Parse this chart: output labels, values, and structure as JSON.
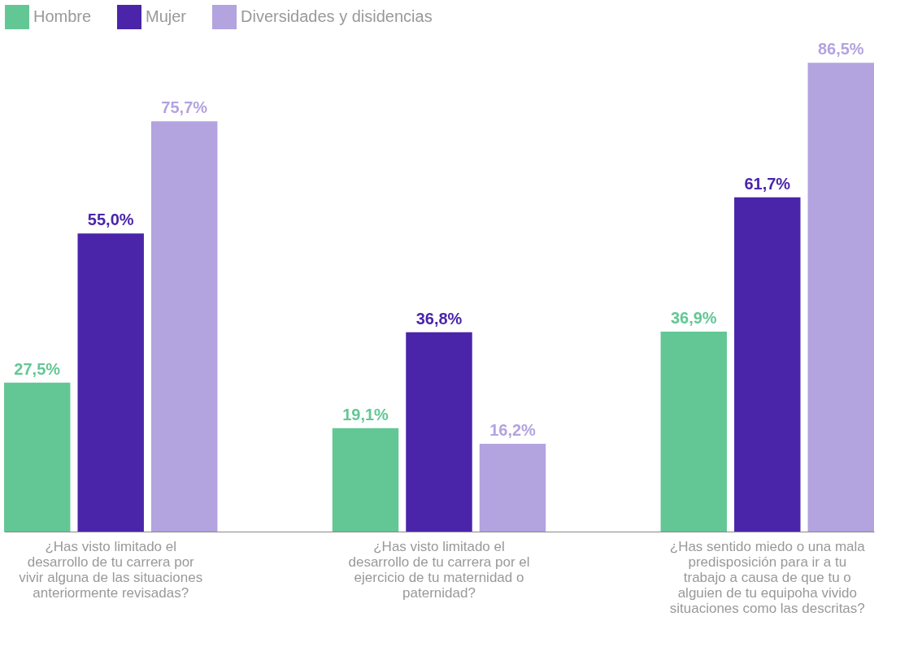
{
  "chart_data": {
    "type": "bar",
    "categories": [
      "¿Has visto limitado el desarrollo de tu carrera por vivir alguna de las situaciones anteriormente revisadas?",
      "¿Has visto limitado el desarrollo de tu carrera por el ejercicio de tu maternidad o paternidad?",
      "¿Has sentido miedo o una mala predisposición para ir a tu trabajo a causa de que tu o alguien de tu equipoha vivido situaciones como las descritas?"
    ],
    "series": [
      {
        "name": "Hombre",
        "color": "#63c795",
        "values": [
          27.5,
          19.1,
          36.9
        ],
        "value_labels": [
          "27,5%",
          "19,1%",
          "36,9%"
        ]
      },
      {
        "name": "Mujer",
        "color": "#4a25aa",
        "values": [
          55.0,
          36.8,
          61.7
        ],
        "value_labels": [
          "55,0%",
          "36,8%",
          "61,7%"
        ]
      },
      {
        "name": "Diversidades y disidencias",
        "color": "#b3a3df",
        "values": [
          75.7,
          16.2,
          86.5
        ],
        "value_labels": [
          "75,7%",
          "16,2%",
          "86,5%"
        ]
      }
    ],
    "legend": "top",
    "grid": false
  }
}
